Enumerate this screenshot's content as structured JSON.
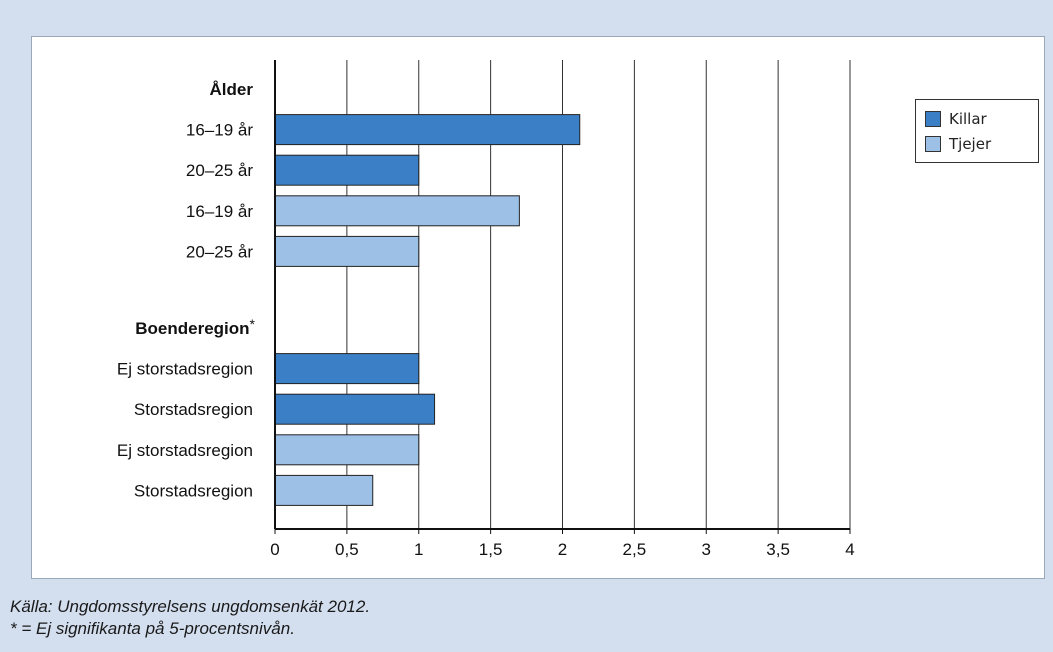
{
  "colors": {
    "killar": "#3b80c7",
    "tjejer": "#9dc0e6",
    "background": "#d3deef",
    "bar_stroke": "#222222",
    "gridline": "#333333"
  },
  "footnotes": {
    "source": "Källa: Ungdomsstyrelsens ungdomsenkät 2012.",
    "note": "* = Ej signifikanta på 5-procentsnivån."
  },
  "chart_data": {
    "type": "bar",
    "orientation": "horizontal",
    "title": "",
    "xlabel": "",
    "ylabel": "",
    "xlim": [
      0,
      4
    ],
    "x_ticks": [
      "0",
      "0,5",
      "1",
      "1,5",
      "2",
      "2,5",
      "3",
      "3,5",
      "4"
    ],
    "grid": true,
    "legend_position": "top-right",
    "legend": [
      {
        "label": "Killar",
        "color_key": "killar"
      },
      {
        "label": "Tjejer",
        "color_key": "tjejer"
      }
    ],
    "groups": [
      {
        "heading": "Ålder",
        "heading_suffix": "",
        "bars": [
          {
            "label": "16–19 år",
            "series": "Killar",
            "value": 2.12
          },
          {
            "label": "20–25 år",
            "series": "Killar",
            "value": 1.0
          },
          {
            "label": "16–19 år",
            "series": "Tjejer",
            "value": 1.7
          },
          {
            "label": "20–25 år",
            "series": "Tjejer",
            "value": 1.0
          }
        ]
      },
      {
        "heading": "Boenderegion",
        "heading_suffix": "*",
        "bars": [
          {
            "label": "Ej storstadsregion",
            "series": "Killar",
            "value": 1.0
          },
          {
            "label": "Storstadsregion",
            "series": "Killar",
            "value": 1.11
          },
          {
            "label": "Ej storstadsregion",
            "series": "Tjejer",
            "value": 1.0
          },
          {
            "label": "Storstadsregion",
            "series": "Tjejer",
            "value": 0.68
          }
        ]
      }
    ]
  }
}
